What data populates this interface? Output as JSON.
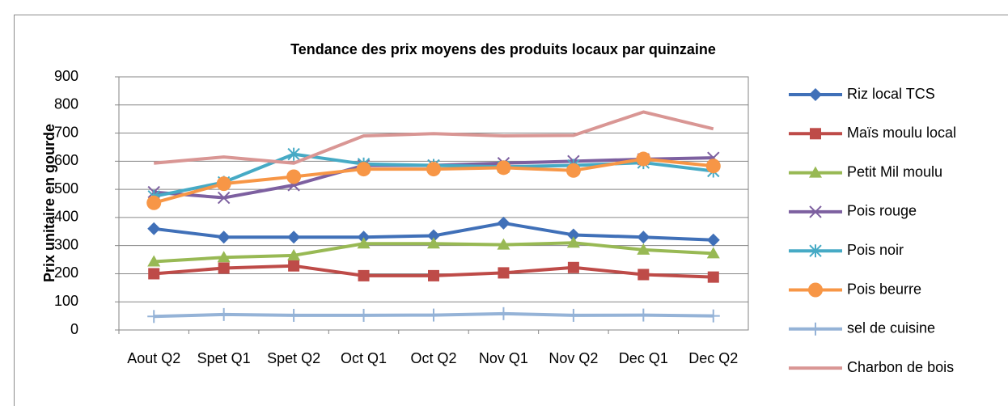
{
  "chart_data": {
    "type": "line",
    "title": "Tendance des prix moyens des produits locaux par quinzaine",
    "y_label": "Prix unitaire en gourde",
    "categories": [
      "Aout Q2",
      "Spet Q1",
      "Spet Q2",
      "Oct Q1",
      "Oct Q2",
      "Nov Q1",
      "Nov Q2",
      "Dec Q1",
      "Dec Q2"
    ],
    "ylim": [
      0,
      900
    ],
    "yticks": [
      0,
      100,
      200,
      300,
      400,
      500,
      600,
      700,
      800,
      900
    ],
    "grid": true,
    "legend": "right",
    "series": [
      {
        "name": "Riz local TCS",
        "color": "#4070b8",
        "marker": "diamond",
        "values": [
          360,
          330,
          330,
          330,
          335,
          380,
          338,
          330,
          320
        ]
      },
      {
        "name": "Maïs moulu local",
        "color": "#be4b48",
        "marker": "square",
        "values": [
          200,
          220,
          228,
          193,
          193,
          203,
          222,
          197,
          188
        ]
      },
      {
        "name": "Petit Mil moulu",
        "color": "#98b954",
        "marker": "triangle",
        "values": [
          243,
          258,
          265,
          307,
          307,
          303,
          310,
          285,
          272
        ]
      },
      {
        "name": "Pois rouge",
        "color": "#7d60a0",
        "marker": "x",
        "values": [
          490,
          470,
          515,
          585,
          585,
          593,
          600,
          607,
          612
        ]
      },
      {
        "name": "Pois noir",
        "color": "#46aac5",
        "marker": "star",
        "values": [
          475,
          525,
          625,
          590,
          585,
          580,
          585,
          595,
          565
        ]
      },
      {
        "name": "Pois beurre",
        "color": "#f79646",
        "marker": "circle",
        "values": [
          452,
          520,
          545,
          572,
          572,
          577,
          567,
          608,
          583
        ]
      },
      {
        "name": "sel de cuisine",
        "color": "#95b3d7",
        "marker": "plus",
        "values": [
          48,
          55,
          52,
          52,
          53,
          58,
          52,
          53,
          50
        ]
      },
      {
        "name": "Charbon de bois",
        "color": "#d99694",
        "values": [
          593,
          615,
          593,
          690,
          698,
          690,
          692,
          775,
          715
        ]
      }
    ]
  }
}
